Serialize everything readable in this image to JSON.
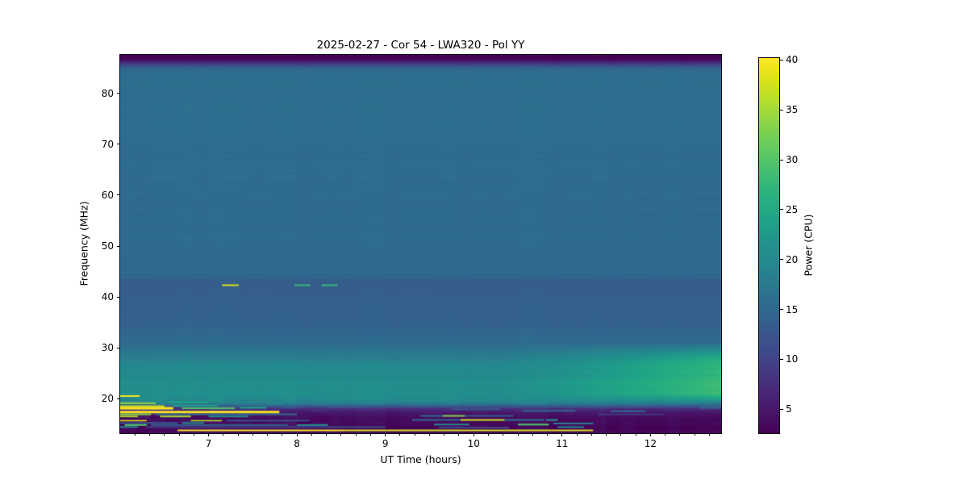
{
  "chart_data": {
    "type": "heatmap",
    "title": "2025-02-27 - Cor 54 - LWA320 - Pol YY",
    "xlabel": "UT Time (hours)",
    "ylabel": "Frequency (MHz)",
    "colorbar_label": "Power (CPU)",
    "colormap": "viridis",
    "x_range": [
      6.0,
      12.8
    ],
    "y_range": [
      13.2,
      87.6
    ],
    "color_range": [
      2.6,
      40.2
    ],
    "x_ticks": [
      7,
      8,
      9,
      10,
      11,
      12
    ],
    "x_minor_step_hours": 0.16667,
    "y_ticks": [
      20,
      30,
      40,
      50,
      60,
      70,
      80
    ],
    "colorbar_ticks": [
      5,
      10,
      15,
      20,
      25,
      30,
      35,
      40
    ],
    "legend_position": "right-colorbar",
    "grid": false,
    "background_profile": [
      [
        13.2,
        3.2
      ],
      [
        15.0,
        3.4
      ],
      [
        16.2,
        3.8
      ],
      [
        17.2,
        5.0
      ],
      [
        18.0,
        8.0
      ],
      [
        18.6,
        14.0
      ],
      [
        19.2,
        19.0
      ],
      [
        20.0,
        20.5
      ],
      [
        21.0,
        20.8
      ],
      [
        23.0,
        20.8
      ],
      [
        25.0,
        20.3
      ],
      [
        27.0,
        19.0
      ],
      [
        29.0,
        17.0
      ],
      [
        31.0,
        15.5
      ],
      [
        34.0,
        14.4
      ],
      [
        37.0,
        13.9
      ],
      [
        40.0,
        13.8
      ],
      [
        43.3,
        13.6
      ],
      [
        43.6,
        14.9
      ],
      [
        50.0,
        15.4
      ],
      [
        60.0,
        15.5
      ],
      [
        70.0,
        15.6
      ],
      [
        78.0,
        16.0
      ],
      [
        80.0,
        15.7
      ],
      [
        82.0,
        16.0
      ],
      [
        84.3,
        16.0
      ],
      [
        85.0,
        14.0
      ],
      [
        85.6,
        10.5
      ],
      [
        86.3,
        5.5
      ],
      [
        86.9,
        3.0
      ],
      [
        87.6,
        3.0
      ]
    ],
    "right_enhancement": {
      "t_start": 10.3,
      "t_end": 12.8,
      "f_low": 19.0,
      "f_peak_low": 21.0,
      "f_peak_high": 28.0,
      "f_high": 31.0,
      "max_boost": 7.5
    },
    "rfi_segments": [
      {
        "t0": 7.15,
        "t1": 7.34,
        "f": 42.3,
        "p": 38,
        "h": 2
      },
      {
        "t0": 7.97,
        "t1": 8.15,
        "f": 42.3,
        "p": 28,
        "h": 2
      },
      {
        "t0": 8.28,
        "t1": 8.46,
        "f": 42.3,
        "p": 28,
        "h": 2
      },
      {
        "t0": 6.0,
        "t1": 6.22,
        "f": 20.5,
        "p": 40,
        "h": 2
      },
      {
        "t0": 6.0,
        "t1": 6.4,
        "f": 19.1,
        "p": 34,
        "h": 2
      },
      {
        "t0": 6.55,
        "t1": 7.0,
        "f": 19.3,
        "p": 23,
        "h": 3
      },
      {
        "t0": 6.0,
        "t1": 6.5,
        "f": 18.5,
        "p": 38,
        "h": 2
      },
      {
        "t0": 6.6,
        "t1": 7.1,
        "f": 18.6,
        "p": 24,
        "h": 2
      },
      {
        "t0": 6.0,
        "t1": 6.6,
        "f": 18.1,
        "p": 40,
        "h": 3
      },
      {
        "t0": 6.7,
        "t1": 7.3,
        "f": 18.1,
        "p": 30,
        "h": 2
      },
      {
        "t0": 7.35,
        "t1": 7.65,
        "f": 18.2,
        "p": 24,
        "h": 2
      },
      {
        "t0": 6.0,
        "t1": 7.8,
        "f": 17.35,
        "p": 40,
        "h": 3
      },
      {
        "t0": 6.0,
        "t1": 6.35,
        "f": 16.9,
        "p": 33,
        "h": 2
      },
      {
        "t0": 6.4,
        "t1": 8.0,
        "f": 16.9,
        "p": 15,
        "h": 2
      },
      {
        "t0": 6.0,
        "t1": 6.2,
        "f": 16.5,
        "p": 35,
        "h": 2
      },
      {
        "t0": 6.45,
        "t1": 6.8,
        "f": 16.5,
        "p": 35,
        "h": 2
      },
      {
        "t0": 7.0,
        "t1": 7.45,
        "f": 16.5,
        "p": 21,
        "h": 2
      },
      {
        "t0": 6.0,
        "t1": 6.3,
        "f": 15.7,
        "p": 39,
        "h": 2
      },
      {
        "t0": 6.8,
        "t1": 7.15,
        "f": 15.7,
        "p": 36,
        "h": 2
      },
      {
        "t0": 7.2,
        "t1": 8.15,
        "f": 15.7,
        "p": 14,
        "h": 2
      },
      {
        "t0": 6.0,
        "t1": 6.65,
        "f": 15.2,
        "p": 14,
        "h": 2
      },
      {
        "t0": 6.7,
        "t1": 6.95,
        "f": 15.2,
        "p": 21,
        "h": 2
      },
      {
        "t0": 6.05,
        "t1": 6.3,
        "f": 14.8,
        "p": 30,
        "h": 2
      },
      {
        "t0": 6.35,
        "t1": 7.9,
        "f": 14.8,
        "p": 13,
        "h": 2
      },
      {
        "t0": 8.0,
        "t1": 8.35,
        "f": 14.8,
        "p": 21,
        "h": 2
      },
      {
        "t0": 6.0,
        "t1": 6.2,
        "f": 14.4,
        "p": 23,
        "h": 2
      },
      {
        "t0": 6.3,
        "t1": 9.0,
        "f": 14.4,
        "p": 11,
        "h": 2
      },
      {
        "t0": 6.0,
        "t1": 8.2,
        "f": 15.95,
        "p": 4,
        "h": 2
      },
      {
        "t0": 6.0,
        "t1": 8.3,
        "f": 14.15,
        "p": 4.5,
        "h": 2
      },
      {
        "t0": 9.3,
        "t1": 9.85,
        "f": 15.8,
        "p": 15,
        "h": 2
      },
      {
        "t0": 9.85,
        "t1": 10.35,
        "f": 15.8,
        "p": 37,
        "h": 2
      },
      {
        "t0": 10.35,
        "t1": 10.8,
        "f": 15.8,
        "p": 16,
        "h": 2
      },
      {
        "t0": 10.82,
        "t1": 10.95,
        "f": 15.8,
        "p": 23,
        "h": 2
      },
      {
        "t0": 9.75,
        "t1": 10.3,
        "f": 17.9,
        "p": 13,
        "h": 2
      },
      {
        "t0": 10.55,
        "t1": 11.15,
        "f": 17.6,
        "p": 15,
        "h": 2
      },
      {
        "t0": 9.4,
        "t1": 9.65,
        "f": 16.6,
        "p": 15,
        "h": 2
      },
      {
        "t0": 9.65,
        "t1": 9.9,
        "f": 16.6,
        "p": 33,
        "h": 2
      },
      {
        "t0": 9.9,
        "t1": 10.45,
        "f": 16.6,
        "p": 13,
        "h": 2
      },
      {
        "t0": 9.6,
        "t1": 10.4,
        "f": 14.3,
        "p": 11,
        "h": 2
      },
      {
        "t0": 6.65,
        "t1": 8.55,
        "f": 13.75,
        "p": 40,
        "h": 2
      },
      {
        "t0": 8.55,
        "t1": 11.35,
        "f": 13.75,
        "p": 38,
        "h": 2
      },
      {
        "t0": 11.55,
        "t1": 11.95,
        "f": 17.5,
        "p": 15,
        "h": 2
      },
      {
        "t0": 11.4,
        "t1": 12.15,
        "f": 16.9,
        "p": 9,
        "h": 2
      },
      {
        "t0": 12.55,
        "t1": 12.8,
        "f": 18.2,
        "p": 15,
        "h": 2
      },
      {
        "t0": 9.55,
        "t1": 9.95,
        "f": 14.9,
        "p": 20,
        "h": 2
      },
      {
        "t0": 10.5,
        "t1": 10.85,
        "f": 14.9,
        "p": 30,
        "h": 2
      },
      {
        "t0": 10.9,
        "t1": 11.35,
        "f": 15.1,
        "p": 18,
        "h": 2
      },
      {
        "t0": 10.95,
        "t1": 11.25,
        "f": 14.4,
        "p": 20,
        "h": 2
      }
    ]
  }
}
